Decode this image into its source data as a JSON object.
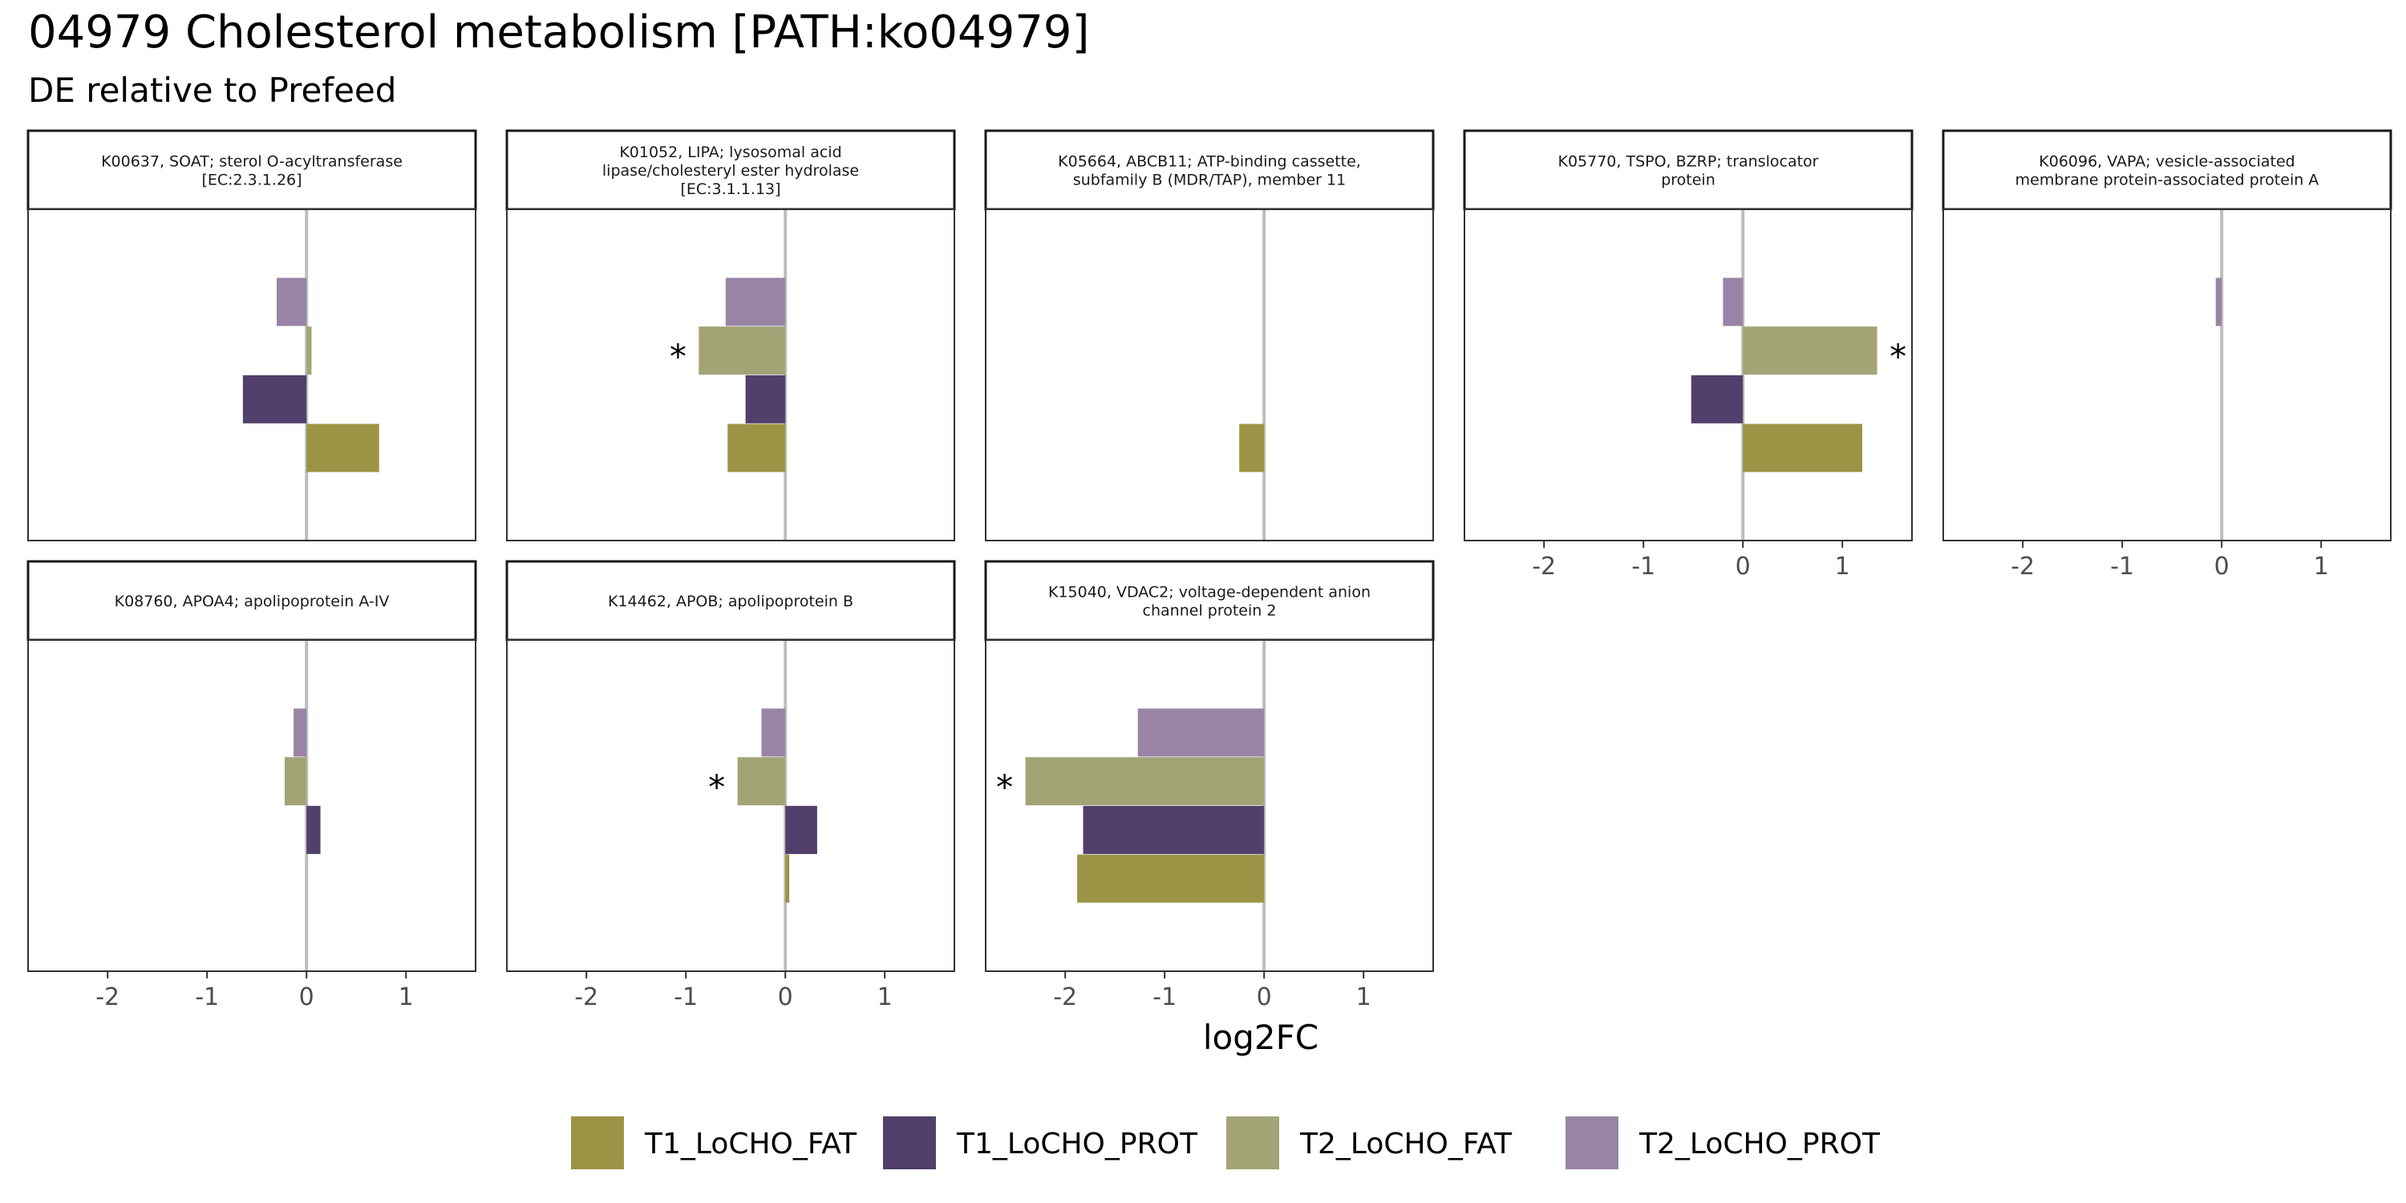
{
  "header": {
    "title": "04979 Cholesterol metabolism [PATH:ko04979]",
    "subtitle": "DE relative to Prefeed"
  },
  "chart_data": {
    "type": "bar",
    "orientation": "horizontal",
    "xlabel": "log2FC",
    "xlim": [
      -2.8,
      1.7
    ],
    "xticks": [
      -2,
      -1,
      0,
      1
    ],
    "xtick_labels": [
      "-2",
      "-1",
      "0",
      "1"
    ],
    "legend_position": "bottom",
    "series": [
      {
        "name": "T1_LoCHO_FAT",
        "color": "#9c9445"
      },
      {
        "name": "T1_LoCHO_PROT",
        "color": "#52406c"
      },
      {
        "name": "T2_LoCHO_FAT",
        "color": "#a3a476"
      },
      {
        "name": "T2_LoCHO_PROT",
        "color": "#9a84a5"
      }
    ],
    "bar_order_bottom_to_top": [
      "T1_LoCHO_FAT",
      "T1_LoCHO_PROT",
      "T2_LoCHO_FAT",
      "T2_LoCHO_PROT"
    ],
    "panels": [
      {
        "label": [
          "K00637, SOAT; sterol O-acyltransferase",
          "[EC:2.3.1.26]"
        ],
        "values": {
          "T1_LoCHO_FAT": 0.73,
          "T1_LoCHO_PROT": -0.64,
          "T2_LoCHO_FAT": 0.05,
          "T2_LoCHO_PROT": -0.3
        },
        "significant": [],
        "star_symbol": "*"
      },
      {
        "label": [
          "K01052, LIPA; lysosomal acid",
          "lipase/cholesteryl ester hydrolase",
          "[EC:3.1.1.13]"
        ],
        "values": {
          "T1_LoCHO_FAT": -0.58,
          "T1_LoCHO_PROT": -0.4,
          "T2_LoCHO_FAT": -0.87,
          "T2_LoCHO_PROT": -0.6
        },
        "significant": [
          "T2_LoCHO_FAT"
        ],
        "star_symbol": "*"
      },
      {
        "label": [
          "K05664, ABCB11; ATP-binding cassette,",
          "subfamily B (MDR/TAP), member 11"
        ],
        "values": {
          "T1_LoCHO_FAT": -0.25
        },
        "significant": [],
        "star_symbol": "*"
      },
      {
        "label": [
          "K05770, TSPO, BZRP; translocator",
          "protein"
        ],
        "values": {
          "T1_LoCHO_FAT": 1.2,
          "T1_LoCHO_PROT": -0.52,
          "T2_LoCHO_FAT": 1.35,
          "T2_LoCHO_PROT": -0.2
        },
        "significant": [
          "T2_LoCHO_FAT"
        ],
        "star_symbol": "*"
      },
      {
        "label": [
          "K06096, VAPA; vesicle-associated",
          "membrane protein-associated protein A"
        ],
        "values": {
          "T2_LoCHO_PROT": -0.06
        },
        "significant": [],
        "star_symbol": "*"
      },
      {
        "label": [
          "K08760, APOA4; apolipoprotein A-IV"
        ],
        "values": {
          "T1_LoCHO_PROT": 0.14,
          "T2_LoCHO_FAT": -0.22,
          "T2_LoCHO_PROT": -0.13
        },
        "significant": [],
        "star_symbol": "*"
      },
      {
        "label": [
          "K14462, APOB; apolipoprotein B"
        ],
        "values": {
          "T1_LoCHO_FAT": 0.04,
          "T1_LoCHO_PROT": 0.32,
          "T2_LoCHO_FAT": -0.48,
          "T2_LoCHO_PROT": -0.24
        },
        "significant": [
          "T2_LoCHO_FAT"
        ],
        "star_symbol": "*"
      },
      {
        "label": [
          "K15040, VDAC2; voltage-dependent anion",
          "channel protein 2"
        ],
        "values": {
          "T1_LoCHO_FAT": -1.88,
          "T1_LoCHO_PROT": -1.82,
          "T2_LoCHO_FAT": -2.4,
          "T2_LoCHO_PROT": -1.27
        },
        "significant": [
          "T2_LoCHO_FAT"
        ],
        "star_symbol": "*"
      }
    ]
  }
}
